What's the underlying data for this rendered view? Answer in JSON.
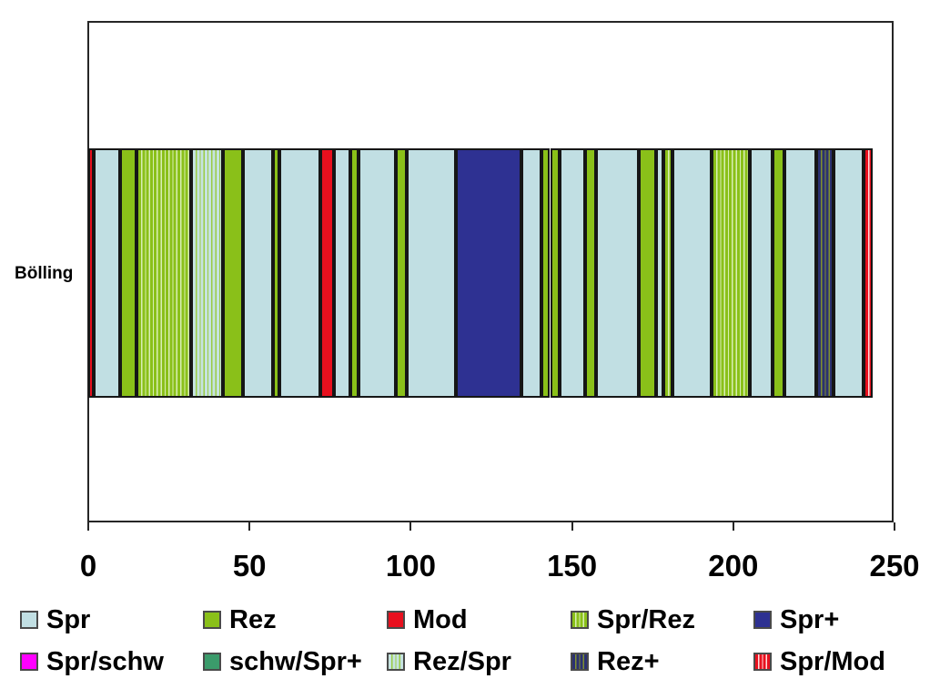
{
  "row_label": "Bölling",
  "axis": {
    "min": 0,
    "max": 250,
    "ticks": [
      0,
      50,
      100,
      150,
      200,
      250
    ]
  },
  "classes": {
    "Spr": {
      "label": "Spr",
      "color": "#c1dfe3"
    },
    "Rez": {
      "label": "Rez",
      "color": "#8ac019"
    },
    "Mod": {
      "label": "Mod",
      "color": "#e8101e"
    },
    "Spr/Rez": {
      "label": "Spr/Rez",
      "color": "#8ac019",
      "stripe": "#d8eeb4"
    },
    "Spr+": {
      "label": "Spr+",
      "color": "#2e3192"
    },
    "Spr/schw": {
      "label": "Spr/schw",
      "color": "#ff00ff"
    },
    "schw/Spr+": {
      "label": "schw/Spr+",
      "color": "#3b9b6b"
    },
    "Rez/Spr": {
      "label": "Rez/Spr",
      "color": "#c6e3e0",
      "stripe": "#9acb45"
    },
    "Rez+": {
      "label": "Rez+",
      "color": "#2b3170",
      "stripe": "#7f9030"
    },
    "Spr/Mod": {
      "label": "Spr/Mod",
      "color": "#e8101e",
      "stripe": "#ffdcdc"
    }
  },
  "legend": {
    "rows": [
      [
        "Spr",
        "Rez",
        "Mod",
        "Spr/Rez",
        "Spr+"
      ],
      [
        "Spr/schw",
        "schw/Spr+",
        "Rez/Spr",
        "Rez+",
        "Spr/Mod"
      ]
    ],
    "row_tops": [
      668,
      714
    ],
    "col_lefts": [
      22,
      223,
      425,
      627,
      828
    ]
  },
  "chart_data": {
    "type": "bar",
    "orientation": "horizontal",
    "title": "",
    "xlabel": "",
    "ylabel": "",
    "categories": [
      "Bölling"
    ],
    "xlim": [
      0,
      250
    ],
    "x_ticks": [
      0,
      50,
      100,
      150,
      200,
      250
    ],
    "legend_entries": [
      "Spr",
      "Rez",
      "Mod",
      "Spr/Rez",
      "Spr+",
      "Spr/schw",
      "schw/Spr+",
      "Rez/Spr",
      "Rez+",
      "Spr/Mod"
    ],
    "legend_position": "bottom",
    "grid": false,
    "segments": [
      {
        "class": "Mod",
        "from": 0,
        "to": 1.7
      },
      {
        "class": "Spr",
        "from": 1.7,
        "to": 10
      },
      {
        "class": "Rez",
        "from": 10,
        "to": 15
      },
      {
        "class": "Spr/Rez",
        "from": 15,
        "to": 32
      },
      {
        "class": "Rez/Spr",
        "from": 32,
        "to": 41.8
      },
      {
        "class": "Rez",
        "from": 41.8,
        "to": 47.9
      },
      {
        "class": "Spr",
        "from": 47.9,
        "to": 57.3
      },
      {
        "class": "Rez",
        "from": 57.3,
        "to": 59.3
      },
      {
        "class": "Spr",
        "from": 59.3,
        "to": 72
      },
      {
        "class": "Mod",
        "from": 72,
        "to": 76.2
      },
      {
        "class": "Spr",
        "from": 76.2,
        "to": 81.3
      },
      {
        "class": "Rez",
        "from": 81.3,
        "to": 83.7
      },
      {
        "class": "Spr",
        "from": 83.7,
        "to": 95.3
      },
      {
        "class": "Rez",
        "from": 95.3,
        "to": 98.8
      },
      {
        "class": "Spr",
        "from": 98.8,
        "to": 114
      },
      {
        "class": "Spr+",
        "from": 114,
        "to": 134.2
      },
      {
        "class": "Spr",
        "from": 134.2,
        "to": 140.6
      },
      {
        "class": "Rez",
        "from": 140.6,
        "to": 143.2
      },
      {
        "class": "Rez",
        "from": 143.2,
        "to": 146.1
      },
      {
        "class": "Spr",
        "from": 146.1,
        "to": 154.1
      },
      {
        "class": "Rez",
        "from": 154.1,
        "to": 157.5
      },
      {
        "class": "Spr",
        "from": 157.5,
        "to": 170.7
      },
      {
        "class": "Rez",
        "from": 170.7,
        "to": 176.1
      },
      {
        "class": "Spr",
        "from": 176.1,
        "to": 178.3
      },
      {
        "class": "Spr/Rez",
        "from": 178.3,
        "to": 181.1
      },
      {
        "class": "Spr",
        "from": 181.1,
        "to": 193.3
      },
      {
        "class": "Spr/Rez",
        "from": 193.3,
        "to": 205.2
      },
      {
        "class": "Spr",
        "from": 205.2,
        "to": 212.3
      },
      {
        "class": "Rez",
        "from": 212.3,
        "to": 215.9
      },
      {
        "class": "Spr",
        "from": 215.9,
        "to": 225.7
      },
      {
        "class": "Rez+",
        "from": 225.7,
        "to": 231
      },
      {
        "class": "Spr",
        "from": 231,
        "to": 240.3
      },
      {
        "class": "Spr/Mod",
        "from": 240.3,
        "to": 243.3
      }
    ]
  }
}
